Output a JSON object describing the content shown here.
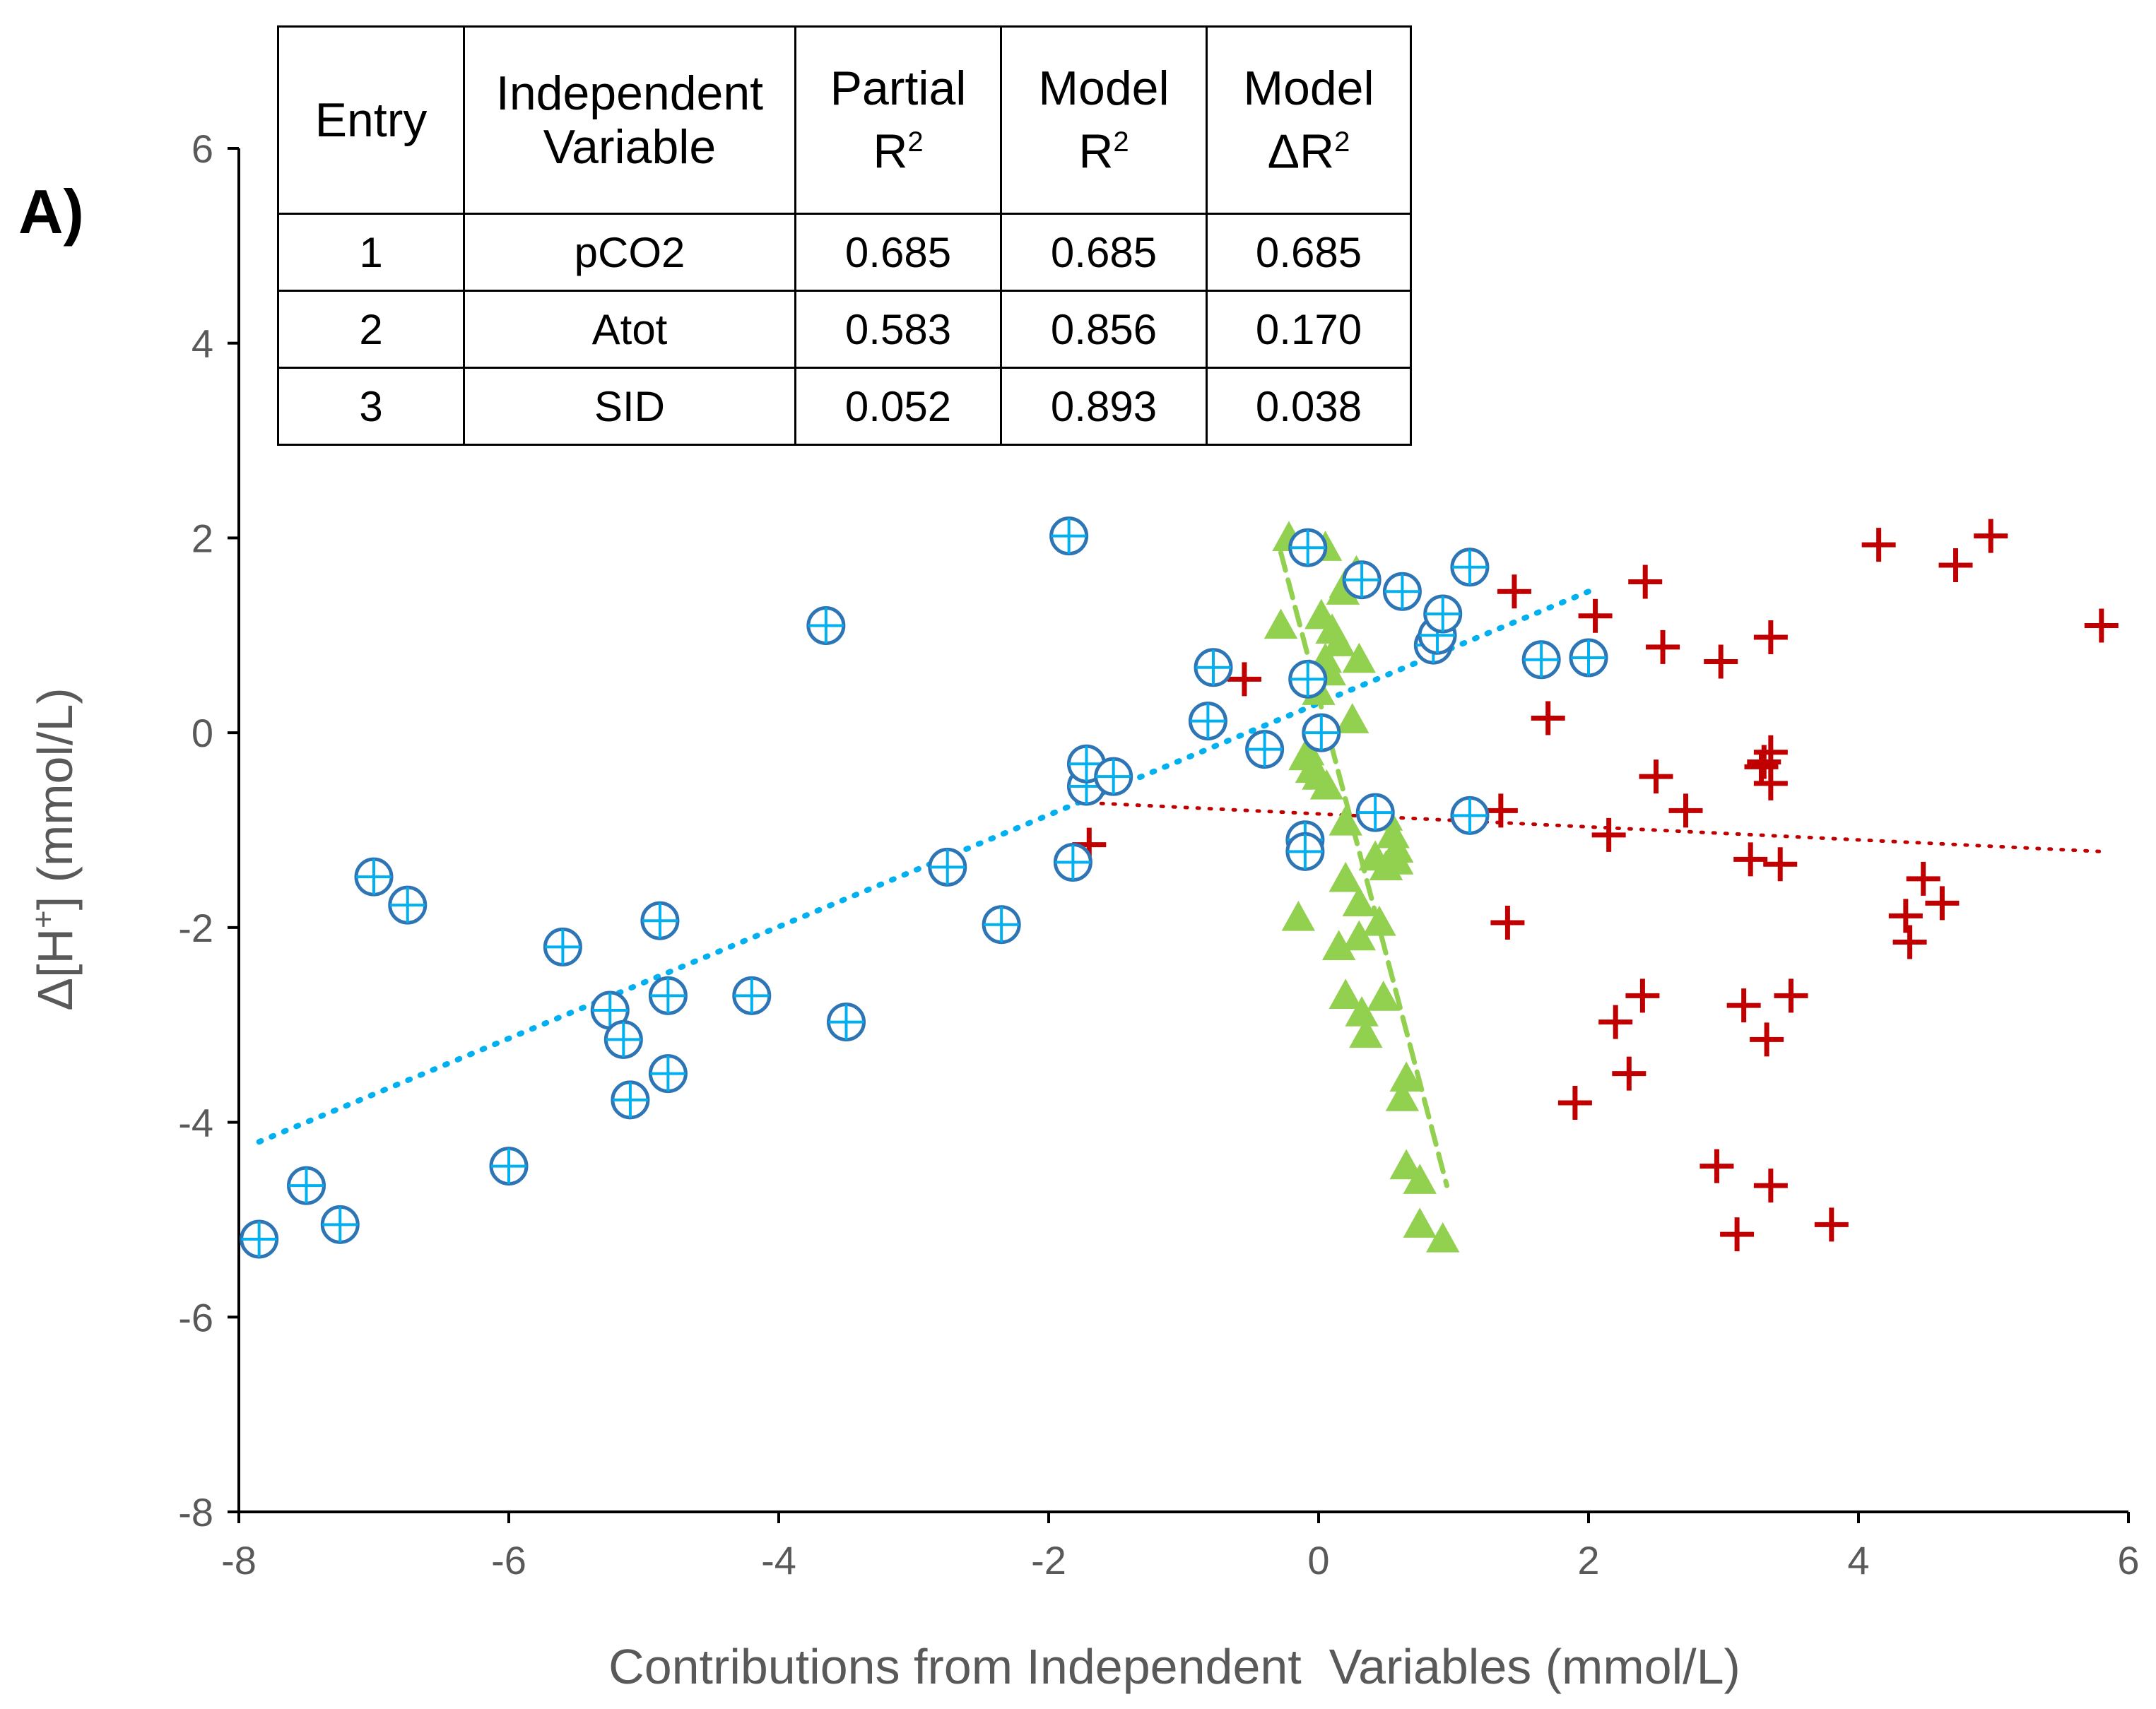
{
  "panel_label": "A)",
  "table": {
    "headers": {
      "entry": "Entry",
      "independent_line1": "Independent",
      "independent_line2": "Variable",
      "partial_line1": "Partial",
      "partial_line2": "R",
      "model_line1": "Model",
      "model_line2": "R",
      "delta_line1": "Model",
      "delta_line2": "ΔR",
      "superscript": "2"
    },
    "rows": [
      {
        "entry": "1",
        "variable": "pCO2",
        "partial_r2": "0.685",
        "model_r2": "0.685",
        "model_delta_r2": "0.685"
      },
      {
        "entry": "2",
        "variable": "Atot",
        "partial_r2": "0.583",
        "model_r2": "0.856",
        "model_delta_r2": "0.170"
      },
      {
        "entry": "3",
        "variable": "SID",
        "partial_r2": "0.052",
        "model_r2": "0.893",
        "model_delta_r2": "0.038"
      }
    ]
  },
  "chart_data": {
    "type": "scatter",
    "title": "",
    "xlabel": "Contributions from Independent  Variables (mmol/L)",
    "ylabel_prefix": "Δ[H",
    "ylabel_sup": "+",
    "ylabel_suffix": "] (mmol/L)",
    "xlim": [
      -8,
      6
    ],
    "ylim": [
      -8,
      6
    ],
    "xticks": [
      -8,
      -6,
      -4,
      -2,
      0,
      2,
      4,
      6
    ],
    "yticks": [
      -8,
      -6,
      -4,
      -2,
      0,
      2,
      4,
      6
    ],
    "grid": false,
    "legend": "none",
    "colors": {
      "pco2": "#00b0f0",
      "pco2_ring": "#2e75b6",
      "atot": "#92d050",
      "sid": "#c00000",
      "axis": "#000000",
      "tick_text": "#595959"
    },
    "series": [
      {
        "name": "pCO2",
        "marker": "circle-plus",
        "points": [
          [
            -7.85,
            -5.2
          ],
          [
            -7.5,
            -4.65
          ],
          [
            -7.25,
            -5.05
          ],
          [
            -7.0,
            -1.48
          ],
          [
            -6.75,
            -1.77
          ],
          [
            -6.0,
            -4.45
          ],
          [
            -5.6,
            -2.2
          ],
          [
            -5.25,
            -2.85
          ],
          [
            -5.15,
            -3.15
          ],
          [
            -5.1,
            -3.77
          ],
          [
            -4.88,
            -1.93
          ],
          [
            -4.82,
            -2.7
          ],
          [
            -4.82,
            -3.5
          ],
          [
            -4.2,
            -2.7
          ],
          [
            -3.65,
            1.1
          ],
          [
            -3.5,
            -2.97
          ],
          [
            -2.75,
            -1.38
          ],
          [
            -2.35,
            -1.97
          ],
          [
            -1.85,
            2.02
          ],
          [
            -1.82,
            -1.33
          ],
          [
            -1.72,
            -0.55
          ],
          [
            -1.72,
            -0.32
          ],
          [
            -1.52,
            -0.45
          ],
          [
            -0.82,
            0.12
          ],
          [
            -0.78,
            0.67
          ],
          [
            -0.4,
            -0.17
          ],
          [
            -0.1,
            -1.1
          ],
          [
            -0.1,
            -1.22
          ],
          [
            -0.08,
            1.9
          ],
          [
            -0.08,
            0.55
          ],
          [
            0.02,
            0.0
          ],
          [
            0.32,
            1.57
          ],
          [
            0.42,
            -0.82
          ],
          [
            0.62,
            1.45
          ],
          [
            0.85,
            0.9
          ],
          [
            0.88,
            1.0
          ],
          [
            0.92,
            1.22
          ],
          [
            1.12,
            1.7
          ],
          [
            1.12,
            -0.85
          ],
          [
            1.65,
            0.75
          ],
          [
            2.0,
            0.77
          ]
        ],
        "trendline": {
          "x": [
            -7.85,
            2.0
          ],
          "y": [
            -4.2,
            1.45
          ]
        }
      },
      {
        "name": "Atot",
        "marker": "triangle",
        "points": [
          [
            -0.22,
            2.0
          ],
          [
            -0.28,
            1.1
          ],
          [
            -0.15,
            -1.9
          ],
          [
            0.05,
            1.9
          ],
          [
            0.28,
            1.65
          ],
          [
            0.18,
            1.45
          ],
          [
            0.2,
            1.52
          ],
          [
            0.02,
            1.2
          ],
          [
            0.1,
            1.05
          ],
          [
            0.15,
            0.92
          ],
          [
            0.3,
            0.75
          ],
          [
            0.08,
            0.62
          ],
          [
            0.0,
            0.42
          ],
          [
            0.05,
            0.75
          ],
          [
            0.25,
            0.13
          ],
          [
            -0.08,
            -0.2
          ],
          [
            -0.05,
            -0.38
          ],
          [
            -0.1,
            -0.25
          ],
          [
            0.0,
            -0.45
          ],
          [
            0.06,
            -0.55
          ],
          [
            0.2,
            -0.92
          ],
          [
            0.5,
            -0.87
          ],
          [
            0.55,
            -1.05
          ],
          [
            0.58,
            -1.2
          ],
          [
            0.42,
            -1.28
          ],
          [
            0.5,
            -1.38
          ],
          [
            0.58,
            -1.32
          ],
          [
            0.2,
            -1.5
          ],
          [
            0.3,
            -1.75
          ],
          [
            0.45,
            -1.95
          ],
          [
            0.15,
            -2.2
          ],
          [
            0.3,
            -2.1
          ],
          [
            0.2,
            -2.7
          ],
          [
            0.48,
            -2.72
          ],
          [
            0.32,
            -2.88
          ],
          [
            0.35,
            -3.1
          ],
          [
            0.65,
            -3.55
          ],
          [
            0.62,
            -3.75
          ],
          [
            0.65,
            -4.45
          ],
          [
            0.75,
            -4.6
          ],
          [
            0.75,
            -5.05
          ],
          [
            0.92,
            -5.2
          ]
        ],
        "trendline": {
          "x": [
            -0.28,
            0.95
          ],
          "y": [
            1.85,
            -4.65
          ]
        }
      },
      {
        "name": "SID",
        "marker": "plus",
        "points": [
          [
            -0.55,
            0.55
          ],
          [
            -1.7,
            -1.15
          ],
          [
            1.35,
            -0.8
          ],
          [
            1.4,
            -1.95
          ],
          [
            1.45,
            1.45
          ],
          [
            1.7,
            0.15
          ],
          [
            1.9,
            -3.8
          ],
          [
            2.05,
            1.2
          ],
          [
            2.15,
            -1.05
          ],
          [
            2.2,
            -2.97
          ],
          [
            2.3,
            -3.5
          ],
          [
            2.4,
            -2.7
          ],
          [
            2.42,
            1.55
          ],
          [
            2.5,
            -0.45
          ],
          [
            2.55,
            0.88
          ],
          [
            2.72,
            -0.8
          ],
          [
            2.95,
            -4.45
          ],
          [
            2.98,
            0.73
          ],
          [
            3.1,
            -5.15
          ],
          [
            3.15,
            -2.8
          ],
          [
            3.2,
            -1.3
          ],
          [
            3.28,
            -0.35
          ],
          [
            3.3,
            -0.3
          ],
          [
            3.32,
            -3.15
          ],
          [
            3.35,
            -4.65
          ],
          [
            3.35,
            0.98
          ],
          [
            3.35,
            -0.2
          ],
          [
            3.35,
            -0.52
          ],
          [
            3.42,
            -1.35
          ],
          [
            3.5,
            -2.7
          ],
          [
            3.8,
            -5.05
          ],
          [
            4.15,
            1.93
          ],
          [
            4.35,
            -1.88
          ],
          [
            4.38,
            -2.15
          ],
          [
            4.48,
            -1.5
          ],
          [
            4.62,
            -1.75
          ],
          [
            4.72,
            1.72
          ],
          [
            4.98,
            2.02
          ],
          [
            5.8,
            1.1
          ]
        ],
        "trendline": {
          "x": [
            -1.7,
            5.8
          ],
          "y": [
            -0.72,
            -1.22
          ]
        }
      }
    ]
  }
}
